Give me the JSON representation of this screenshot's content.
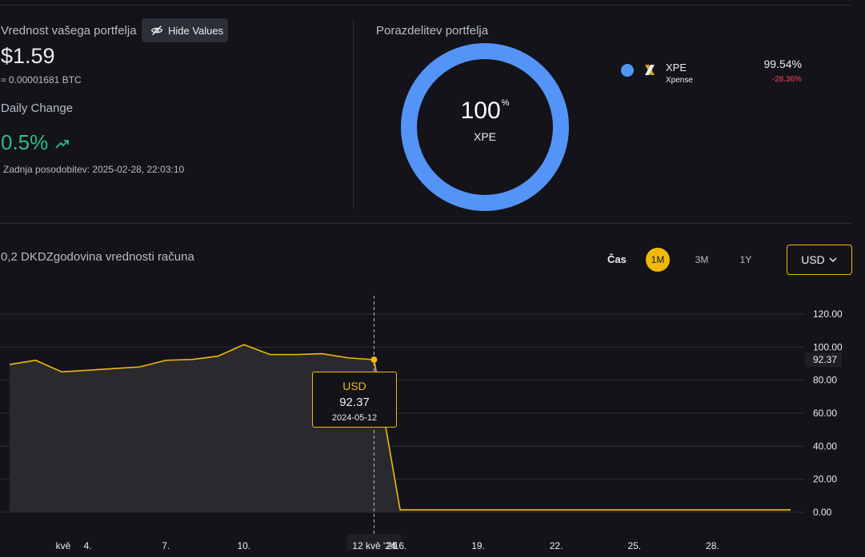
{
  "summary": {
    "portfolio_value_label": "Vrednost vašega portfelja",
    "hide_values_label": "Hide Values",
    "portfolio_value": "$1.59",
    "btc_value": "≈ 0.00001681 BTC",
    "daily_change_label": "Daily Change",
    "daily_change": "0.5%",
    "last_update": "Zadnja posodobitev: 2025-02-28, 22:03:10"
  },
  "allocation": {
    "title": "Porazdelitev portfelja",
    "center_percent": "100",
    "center_percent_sign": "%",
    "center_symbol": "XPE",
    "legend": [
      {
        "symbol": "XPE",
        "name": "Xpense",
        "share": "99.54%",
        "change": "-28.36%",
        "color": "#5594f7"
      }
    ]
  },
  "history": {
    "title": "0,2 DKDZgodovina vrednosti računa",
    "time_label": "Čas",
    "ranges": [
      "1M",
      "3M",
      "1Y"
    ],
    "active_range": "1M",
    "currency": "USD"
  },
  "chart_data": {
    "type": "area",
    "x": [
      "2024-04-28",
      "2024-04-29",
      "2024-04-30",
      "2024-05-01",
      "2024-05-02",
      "2024-05-03",
      "2024-05-04",
      "2024-05-05",
      "2024-05-06",
      "2024-05-07",
      "2024-05-08",
      "2024-05-09",
      "2024-05-10",
      "2024-05-11",
      "2024-05-12",
      "2024-05-13",
      "2024-05-14",
      "2024-05-15",
      "2024-05-16",
      "2024-05-17",
      "2024-05-18",
      "2024-05-19",
      "2024-05-20",
      "2024-05-21",
      "2024-05-22",
      "2024-05-23",
      "2024-05-24",
      "2024-05-25",
      "2024-05-26",
      "2024-05-27",
      "2024-05-28"
    ],
    "series": [
      {
        "values": [
          89.5,
          92,
          85,
          86,
          87,
          88,
          92,
          92.5,
          94.5,
          101.5,
          95.5,
          95.5,
          96,
          93.5,
          92.37,
          1.5,
          1.5,
          1.5,
          1.5,
          1.5,
          1.5,
          1.5,
          1.5,
          1.5,
          1.5,
          1.5,
          1.5,
          1.5,
          1.5,
          1.5,
          1.5
        ]
      }
    ],
    "x_tick_labels": [
      "kvě",
      "4.",
      "7.",
      "10.",
      "12 kvě '24",
      "25",
      "16.",
      "19.",
      "22.",
      "25.",
      "28."
    ],
    "y_ticks": [
      "120.00",
      "100.00",
      "80.00",
      "60.00",
      "40.00",
      "20.00",
      "0.00"
    ],
    "ylim": [
      0,
      120
    ],
    "grid": true,
    "last_value_label": "92.37",
    "tooltip": {
      "currency": "USD",
      "value": "92.37",
      "date": "2024-05-12"
    },
    "line_color": "#f0b90b"
  }
}
